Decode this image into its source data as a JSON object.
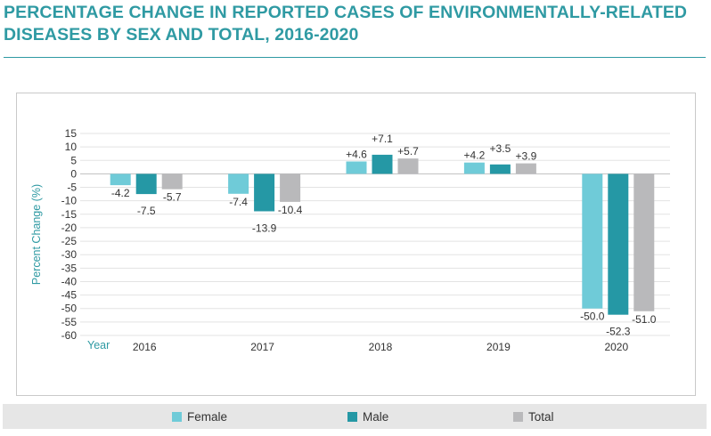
{
  "header": {
    "title_line1": "PERCENTAGE CHANGE IN REPORTED CASES OF ENVIRONMENTALLY-RELATED",
    "title_line2": "DISEASES BY SEX AND TOTAL, 2016-2020"
  },
  "colors": {
    "title": "#2f9aa3",
    "female": "#6fcbd8",
    "male": "#2598a5",
    "total": "#b9b9bb",
    "axis_title": "#2f9aa3"
  },
  "chart_data": {
    "type": "bar",
    "title": "PERCENTAGE CHANGE IN REPORTED CASES OF ENVIRONMENTALLY-RELATED DISEASES BY SEX AND TOTAL, 2016-2020",
    "xlabel": "Year",
    "ylabel": "Percent Change (%)",
    "categories": [
      "2016",
      "2017",
      "2018",
      "2019",
      "2020"
    ],
    "series": [
      {
        "name": "Female",
        "values": [
          -4.2,
          -7.4,
          4.6,
          4.2,
          -50.0
        ],
        "labels": [
          "-4.2",
          "-7.4",
          "+4.6",
          "+4.2",
          "-50.0"
        ]
      },
      {
        "name": "Male",
        "values": [
          -7.5,
          -13.9,
          7.1,
          3.5,
          -52.3
        ],
        "labels": [
          "-7.5",
          "-13.9",
          "+7.1",
          "+3.5",
          "-52.3"
        ]
      },
      {
        "name": "Total",
        "values": [
          -5.7,
          -10.4,
          5.7,
          3.9,
          -51.0
        ],
        "labels": [
          "-5.7",
          "-10.4",
          "+5.7",
          "+3.9",
          "-51.0"
        ]
      }
    ],
    "ylim": [
      -60,
      15
    ],
    "yticks": [
      15,
      10,
      5,
      0,
      -5,
      -10,
      -15,
      -20,
      -25,
      -30,
      -35,
      -40,
      -45,
      -50,
      -55,
      -60
    ],
    "grid": true,
    "legend_position": "bottom"
  },
  "legend": {
    "female": "Female",
    "male": "Male",
    "total": "Total"
  }
}
